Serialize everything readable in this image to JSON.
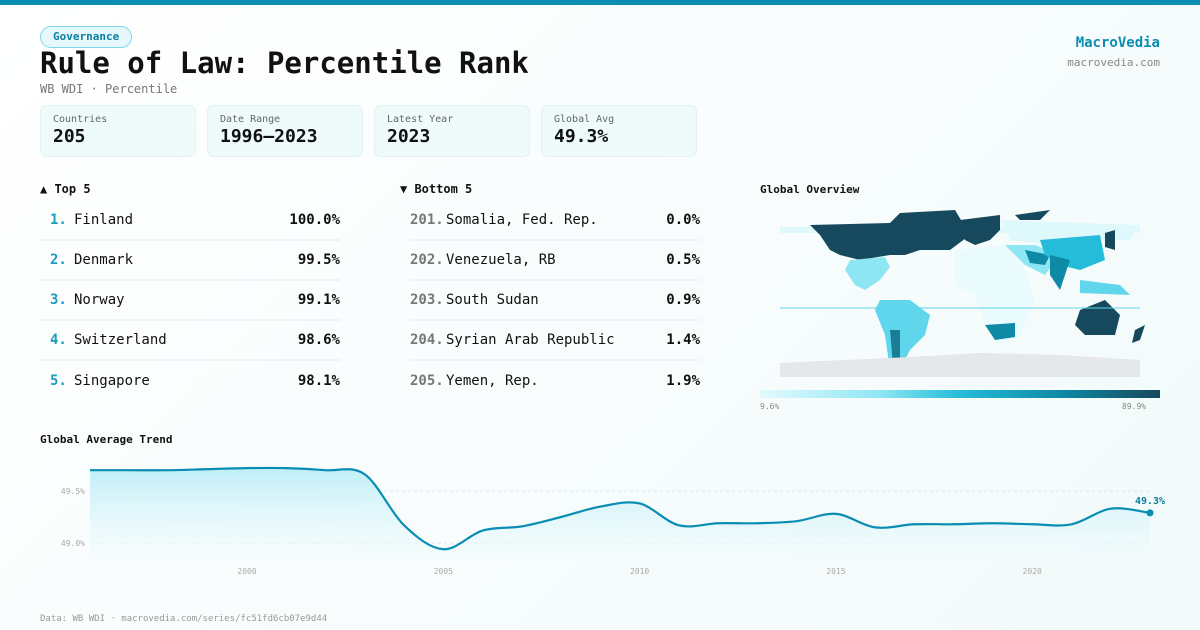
{
  "header": {
    "badge": "Governance",
    "title": "Rule of Law: Percentile Rank",
    "subtitle": "WB WDI · Percentile",
    "brand": "MacroVedia",
    "brand_url": "macrovedia.com"
  },
  "stats": [
    {
      "label": "Countries",
      "value": "205"
    },
    {
      "label": "Date Range",
      "value": "1996–2023"
    },
    {
      "label": "Latest Year",
      "value": "2023"
    },
    {
      "label": "Global Avg",
      "value": "49.3%"
    }
  ],
  "top": {
    "title": "▲ Top 5",
    "items": [
      {
        "rank": "1.",
        "name": "Finland",
        "value": "100.0%"
      },
      {
        "rank": "2.",
        "name": "Denmark",
        "value": "99.5%"
      },
      {
        "rank": "3.",
        "name": "Norway",
        "value": "99.1%"
      },
      {
        "rank": "4.",
        "name": "Switzerland",
        "value": "98.6%"
      },
      {
        "rank": "5.",
        "name": "Singapore",
        "value": "98.1%"
      }
    ]
  },
  "bottom": {
    "title": "▼ Bottom 5",
    "items": [
      {
        "rank": "201.",
        "name": "Somalia, Fed. Rep.",
        "value": "0.0%"
      },
      {
        "rank": "202.",
        "name": "Venezuela, RB",
        "value": "0.5%"
      },
      {
        "rank": "203.",
        "name": "South Sudan",
        "value": "0.9%"
      },
      {
        "rank": "204.",
        "name": "Syrian Arab Republic",
        "value": "1.4%"
      },
      {
        "rank": "205.",
        "name": "Yemen, Rep.",
        "value": "1.9%"
      }
    ]
  },
  "map": {
    "title": "Global Overview",
    "legend_min": "9.6%",
    "legend_max": "89.9%",
    "colors": {
      "low": "#e3fafd",
      "mid": "#24bcd8",
      "high": "#16495e",
      "nodata": "#e5e7ea"
    }
  },
  "chart_data": {
    "type": "area",
    "title": "Global Average Trend",
    "x": [
      1996,
      1997,
      1998,
      1999,
      2000,
      2001,
      2002,
      2003,
      2004,
      2005,
      2006,
      2007,
      2008,
      2009,
      2010,
      2011,
      2012,
      2013,
      2014,
      2015,
      2016,
      2017,
      2018,
      2019,
      2020,
      2021,
      2022,
      2023
    ],
    "values": [
      49.7,
      49.7,
      49.7,
      49.71,
      49.72,
      49.72,
      49.7,
      49.66,
      49.17,
      48.94,
      49.12,
      49.16,
      49.25,
      49.35,
      49.38,
      49.17,
      49.19,
      49.19,
      49.21,
      49.28,
      49.15,
      49.18,
      49.18,
      49.19,
      49.18,
      49.18,
      49.33,
      49.29
    ],
    "yticks": [
      {
        "v": 49.5,
        "label": "49.5%"
      },
      {
        "v": 49.0,
        "label": "49.0%"
      }
    ],
    "xticks": [
      {
        "v": 2000,
        "label": "2000"
      },
      {
        "v": 2005,
        "label": "2005"
      },
      {
        "v": 2010,
        "label": "2010"
      },
      {
        "v": 2015,
        "label": "2015"
      },
      {
        "v": 2020,
        "label": "2020"
      }
    ],
    "end_label": "49.3%",
    "color": "#0a8db3",
    "grid": true
  },
  "footer": "Data: WB WDI · macrovedia.com/series/fc51fd6cb07e9d44"
}
